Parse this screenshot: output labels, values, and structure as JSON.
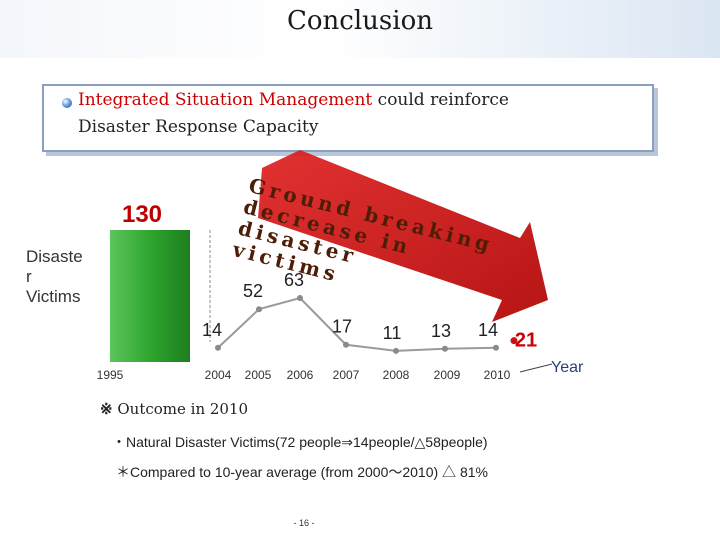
{
  "title": "Conclusion",
  "callout": {
    "line1_highlight": "Integrated Situation Management",
    "line1_rest": " could reinforce",
    "line2": "Disaster Response Capacity"
  },
  "ylabel": "Disaste\nr\nVictims",
  "diagonal_note": "Ground breaking\ndecrease in disaster\nvictims",
  "notes": {
    "mark": "※",
    "heading": "Outcome in 2010",
    "line1": "・Natural Disaster Victims(72 people⇒14people/△58people)",
    "line2": "＊Compared to 10-year average (from 2000～2010) △ 81%"
  },
  "page_number": "- 16 -",
  "colors": {
    "bar": "#2ea62e",
    "line": "#909090",
    "highlight_label": "#cc0000",
    "arrow": "#cc1111"
  },
  "chart_data": {
    "type": "line",
    "xlabel": "Year",
    "ylabel": "Disaste\nr\nVictims",
    "categories": [
      "1995",
      "2004",
      "2005",
      "2006",
      "2007",
      "2008",
      "2009",
      "2010"
    ],
    "bar": {
      "category": "1995",
      "value": 130
    },
    "series": [
      {
        "values": [
          130,
          14,
          52,
          63,
          17,
          11,
          13,
          14
        ]
      }
    ],
    "highlight": {
      "category": "2010",
      "value": 21
    },
    "ylim": [
      0,
      140
    ],
    "grid": false
  }
}
